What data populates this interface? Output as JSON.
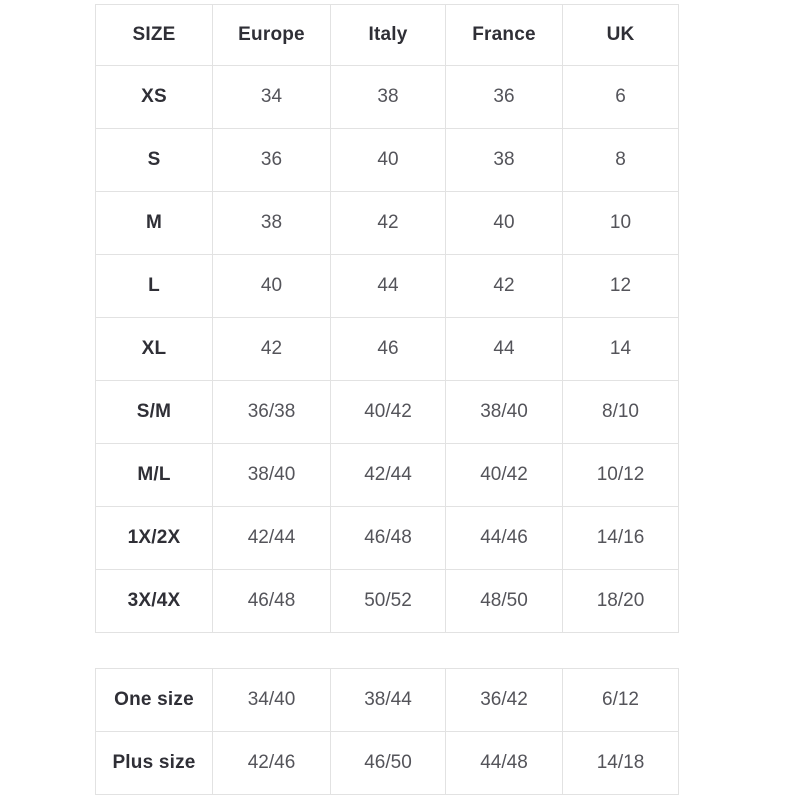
{
  "table1": {
    "headers": [
      "SIZE",
      "Europe",
      "Italy",
      "France",
      "UK"
    ],
    "rows": [
      {
        "size": "XS",
        "values": [
          "34",
          "38",
          "36",
          "6"
        ]
      },
      {
        "size": "S",
        "values": [
          "36",
          "40",
          "38",
          "8"
        ]
      },
      {
        "size": "M",
        "values": [
          "38",
          "42",
          "40",
          "10"
        ]
      },
      {
        "size": "L",
        "values": [
          "40",
          "44",
          "42",
          "12"
        ]
      },
      {
        "size": "XL",
        "values": [
          "42",
          "46",
          "44",
          "14"
        ]
      },
      {
        "size": "S/M",
        "values": [
          "36/38",
          "40/42",
          "38/40",
          "8/10"
        ]
      },
      {
        "size": "M/L",
        "values": [
          "38/40",
          "42/44",
          "40/42",
          "10/12"
        ]
      },
      {
        "size": "1X/2X",
        "values": [
          "42/44",
          "46/48",
          "44/46",
          "14/16"
        ]
      },
      {
        "size": "3X/4X",
        "values": [
          "46/48",
          "50/52",
          "48/50",
          "18/20"
        ]
      }
    ]
  },
  "table2": {
    "rows": [
      {
        "size": "One size",
        "values": [
          "34/40",
          "38/44",
          "36/42",
          "6/12"
        ]
      },
      {
        "size": "Plus size",
        "values": [
          "42/46",
          "46/50",
          "44/48",
          "14/18"
        ]
      }
    ]
  },
  "colors": {
    "background": "#ffffff",
    "border": "#e2e2e2",
    "header_text": "#2f2f36",
    "value_text": "#54545a"
  }
}
